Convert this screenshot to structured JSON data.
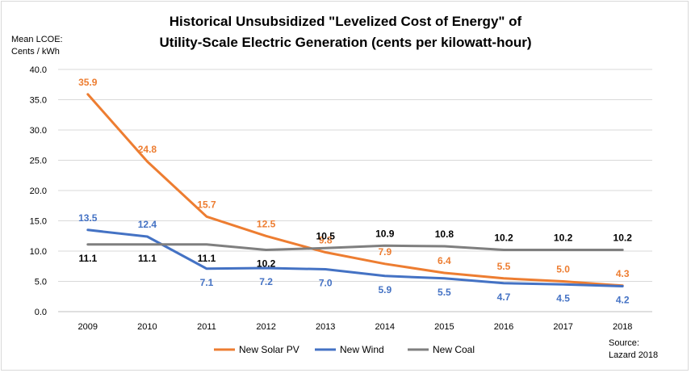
{
  "chart_data": {
    "type": "line",
    "title_line1": "Historical Unsubsidized \"Levelized Cost of Energy\" of",
    "title_line2": "Utility-Scale Electric Generation (cents per kilowatt-hour)",
    "ylabel_line1": "Mean LCOE:",
    "ylabel_line2": "Cents / kWh",
    "xlabel": "",
    "categories": [
      "2009",
      "2010",
      "2011",
      "2012",
      "2013",
      "2014",
      "2015",
      "2016",
      "2017",
      "2018"
    ],
    "ylim": [
      0,
      40
    ],
    "yticks": [
      "0.0",
      "5.0",
      "10.0",
      "15.0",
      "20.0",
      "25.0",
      "30.0",
      "35.0",
      "40.0"
    ],
    "grid": true,
    "legend_position": "bottom",
    "series": [
      {
        "name": "New Solar PV",
        "color": "#ed7d31",
        "values": [
          35.9,
          24.8,
          15.7,
          12.5,
          9.8,
          7.9,
          6.4,
          5.5,
          5.0,
          4.3
        ],
        "labels": [
          "35.9",
          "24.8",
          "15.7",
          "12.5",
          "9.8",
          "7.9",
          "6.4",
          "5.5",
          "5.0",
          "4.3"
        ]
      },
      {
        "name": "New Wind",
        "color": "#4472c4",
        "values": [
          13.5,
          12.4,
          7.1,
          7.2,
          7.0,
          5.9,
          5.5,
          4.7,
          4.5,
          4.2
        ],
        "labels": [
          "13.5",
          "12.4",
          "7.1",
          "7.2",
          "7.0",
          "5.9",
          "5.5",
          "4.7",
          "4.5",
          "4.2"
        ]
      },
      {
        "name": "New Coal",
        "color": "#7f7f7f",
        "label_color": "#000000",
        "values": [
          11.1,
          11.1,
          11.1,
          10.2,
          10.5,
          10.9,
          10.8,
          10.2,
          10.2,
          10.2
        ],
        "labels": [
          "11.1",
          "11.1",
          "11.1",
          "10.2",
          "10.5",
          "10.9",
          "10.8",
          "10.2",
          "10.2",
          "10.2"
        ]
      }
    ],
    "source_line1": "Source:",
    "source_line2": "Lazard 2018"
  }
}
